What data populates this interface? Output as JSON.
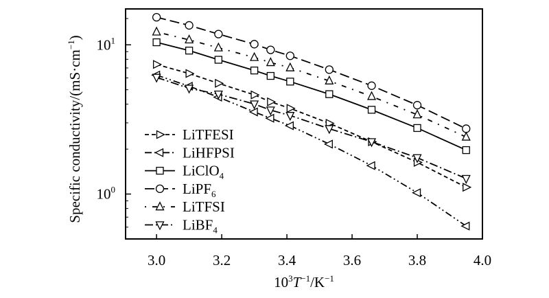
{
  "chart_data": {
    "type": "line",
    "xlabel": "10³T⁻¹/K⁻¹",
    "xlabel_parts": [
      "10",
      "3",
      "T",
      "−1",
      "/K",
      "−1"
    ],
    "ylabel": "Specific conductivity/(mS·cm⁻¹)",
    "ylabel_parts": [
      "Specific conductivity/(mS·cm",
      "−1",
      ")"
    ],
    "xlim": [
      2.905,
      4.0
    ],
    "ylim": [
      0.5,
      17.4
    ],
    "yscale": "log",
    "xticks": [
      3.0,
      3.2,
      3.4,
      3.6,
      3.8,
      4.0
    ],
    "xtick_labels": [
      "3.0",
      "3.2",
      "3.4",
      "3.6",
      "3.8",
      "4.0"
    ],
    "yticks": [
      {
        "value": 10,
        "base": "10",
        "exp": "1"
      },
      {
        "value": 1,
        "base": "10",
        "exp": "0"
      }
    ],
    "grid": false,
    "legend_position": "bottom-left",
    "series": [
      {
        "name": "LiTFESI",
        "label_base": "LiTFESI",
        "label_sub": "",
        "marker": "triangle-right",
        "dash": "6,4",
        "x": [
          3.0,
          3.1,
          3.19,
          3.3,
          3.35,
          3.41,
          3.53,
          3.66,
          3.8,
          3.95
        ],
        "y": [
          7.39,
          6.42,
          5.52,
          4.62,
          4.15,
          3.75,
          2.98,
          2.24,
          1.63,
          1.11
        ]
      },
      {
        "name": "LiHFPSI",
        "label_base": "LiHFPSI",
        "label_sub": "",
        "marker": "triangle-left",
        "dash": "10,4,2,4,2,4",
        "x": [
          3.0,
          3.1,
          3.19,
          3.3,
          3.35,
          3.41,
          3.53,
          3.66,
          3.8,
          3.95
        ],
        "y": [
          6.27,
          5.28,
          4.46,
          3.55,
          3.22,
          2.87,
          2.16,
          1.55,
          1.02,
          0.61
        ]
      },
      {
        "name": "LiClO4",
        "label_base": "LiClO",
        "label_sub": "4",
        "marker": "square",
        "dash": "",
        "x": [
          3.0,
          3.1,
          3.19,
          3.3,
          3.35,
          3.41,
          3.53,
          3.66,
          3.8,
          3.95
        ],
        "y": [
          10.4,
          9.15,
          7.94,
          6.73,
          6.19,
          5.67,
          4.67,
          3.67,
          2.77,
          1.97
        ]
      },
      {
        "name": "LiPF6",
        "label_base": "LiPF",
        "label_sub": "6",
        "marker": "circle",
        "dash": "14,6",
        "x": [
          3.0,
          3.1,
          3.19,
          3.3,
          3.35,
          3.41,
          3.53,
          3.66,
          3.8,
          3.95
        ],
        "y": [
          15.3,
          13.5,
          11.8,
          10.1,
          9.25,
          8.44,
          6.82,
          5.32,
          3.94,
          2.74
        ]
      },
      {
        "name": "LiTFSI",
        "label_base": "LiTFSI",
        "label_sub": "",
        "marker": "triangle-up",
        "dash": "2,9,7,9",
        "x": [
          3.0,
          3.1,
          3.19,
          3.3,
          3.35,
          3.41,
          3.53,
          3.66,
          3.8,
          3.95
        ],
        "y": [
          12.2,
          10.8,
          9.55,
          8.23,
          7.61,
          7.02,
          5.73,
          4.51,
          3.4,
          2.41
        ]
      },
      {
        "name": "LiBF4",
        "label_base": "LiBF",
        "label_sub": "4",
        "marker": "triangle-down",
        "dash": "12,4,2,4",
        "x": [
          3.0,
          3.1,
          3.19,
          3.3,
          3.35,
          3.41,
          3.53,
          3.66,
          3.8,
          3.95
        ],
        "y": [
          6.05,
          5.11,
          4.67,
          4.01,
          3.65,
          3.36,
          2.74,
          2.24,
          1.75,
          1.27
        ]
      }
    ]
  }
}
